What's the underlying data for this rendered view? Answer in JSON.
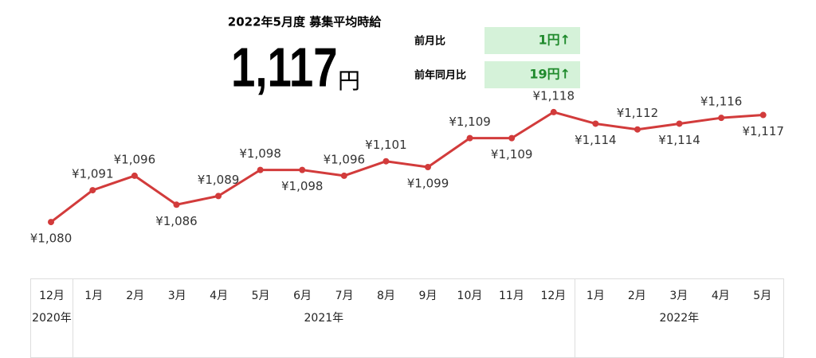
{
  "header": {
    "title": "2022年5月度 募集平均時給",
    "headline_value": "1,117",
    "headline_unit": "円",
    "comparisons": [
      {
        "label": "前月比",
        "value": "1円↑"
      },
      {
        "label": "前年同月比",
        "value": "19円↑"
      }
    ]
  },
  "chart_data": {
    "type": "line",
    "categories": [
      "12月",
      "1月",
      "2月",
      "3月",
      "4月",
      "5月",
      "6月",
      "7月",
      "8月",
      "9月",
      "10月",
      "11月",
      "12月",
      "1月",
      "2月",
      "3月",
      "4月",
      "5月"
    ],
    "year_groups": [
      {
        "label": "2020年",
        "count": 1
      },
      {
        "label": "2021年",
        "count": 12
      },
      {
        "label": "2022年",
        "count": 5
      }
    ],
    "values": [
      1080,
      1091,
      1096,
      1086,
      1089,
      1098,
      1098,
      1096,
      1101,
      1099,
      1109,
      1109,
      1118,
      1114,
      1112,
      1114,
      1116,
      1117
    ],
    "value_labels": [
      "¥1,080",
      "¥1,091",
      "¥1,096",
      "¥1,086",
      "¥1,089",
      "¥1,098",
      "¥1,098",
      "¥1,096",
      "¥1,101",
      "¥1,099",
      "¥1,109",
      "¥1,109",
      "¥1,118",
      "¥1,114",
      "¥1,112",
      "¥1,114",
      "¥1,116",
      "¥1,117"
    ],
    "color": "#d23b3b",
    "ylim": [
      1066,
      1121
    ]
  }
}
